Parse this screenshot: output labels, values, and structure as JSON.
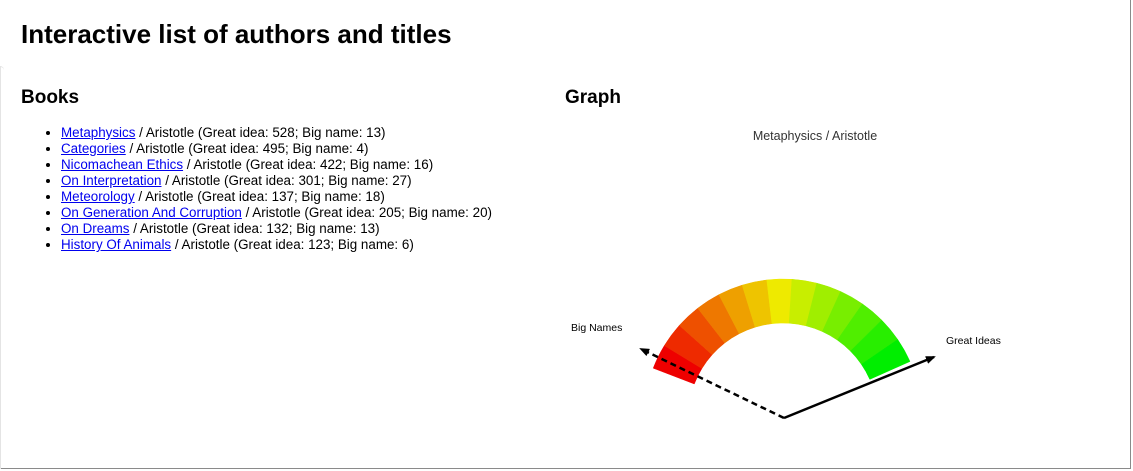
{
  "page_title": "Interactive list of authors and titles",
  "books": {
    "heading": "Books",
    "items": [
      {
        "title": "Metaphysics",
        "author": "Aristotle",
        "great_idea": 528,
        "big_name": 13
      },
      {
        "title": "Categories",
        "author": "Aristotle",
        "great_idea": 495,
        "big_name": 4
      },
      {
        "title": "Nicomachean Ethics",
        "author": "Aristotle",
        "great_idea": 422,
        "big_name": 16
      },
      {
        "title": "On Interpretation",
        "author": "Aristotle",
        "great_idea": 301,
        "big_name": 27
      },
      {
        "title": "Meteorology",
        "author": "Aristotle",
        "great_idea": 137,
        "big_name": 18
      },
      {
        "title": "On Generation And Corruption",
        "author": "Aristotle",
        "great_idea": 205,
        "big_name": 20
      },
      {
        "title": "On Dreams",
        "author": "Aristotle",
        "great_idea": 132,
        "big_name": 13
      },
      {
        "title": "History Of Animals",
        "author": "Aristotle",
        "great_idea": 123,
        "big_name": 6
      }
    ]
  },
  "graph": {
    "heading": "Graph",
    "chart_title": "Metaphysics / Aristotle",
    "axis_big_names": "Big Names",
    "axis_great_ideas": "Great Ideas",
    "segment_colors": [
      "#ee0000",
      "#ee2a00",
      "#ee5000",
      "#ee7800",
      "#eea000",
      "#eec400",
      "#eeea00",
      "#c8ee00",
      "#a0ee00",
      "#78ee00",
      "#50ee00",
      "#28ee00",
      "#00ee00"
    ]
  }
}
